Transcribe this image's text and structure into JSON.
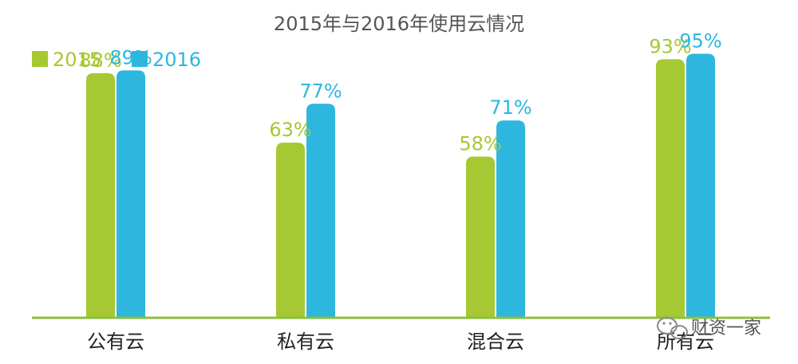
{
  "chart_data": {
    "type": "bar",
    "title": "2015年与2016年使用云情况",
    "categories": [
      "公有云",
      "私有云",
      "混合云",
      "所有云"
    ],
    "series": [
      {
        "name": "2015",
        "values": [
          88,
          63,
          58,
          93
        ],
        "labels": [
          "88%",
          "63%",
          "58%",
          "93%"
        ],
        "color": "#a6c832"
      },
      {
        "name": "2016",
        "values": [
          89,
          77,
          71,
          95
        ],
        "labels": [
          "89%",
          "77%",
          "71%",
          "95%"
        ],
        "color": "#2db7de"
      }
    ],
    "ylim": [
      0,
      100
    ],
    "grid": false,
    "legend": "top-left",
    "baseline_color": "#8cbf3f"
  },
  "watermark": {
    "text": "财资一家",
    "icon": "wechat-icon"
  }
}
